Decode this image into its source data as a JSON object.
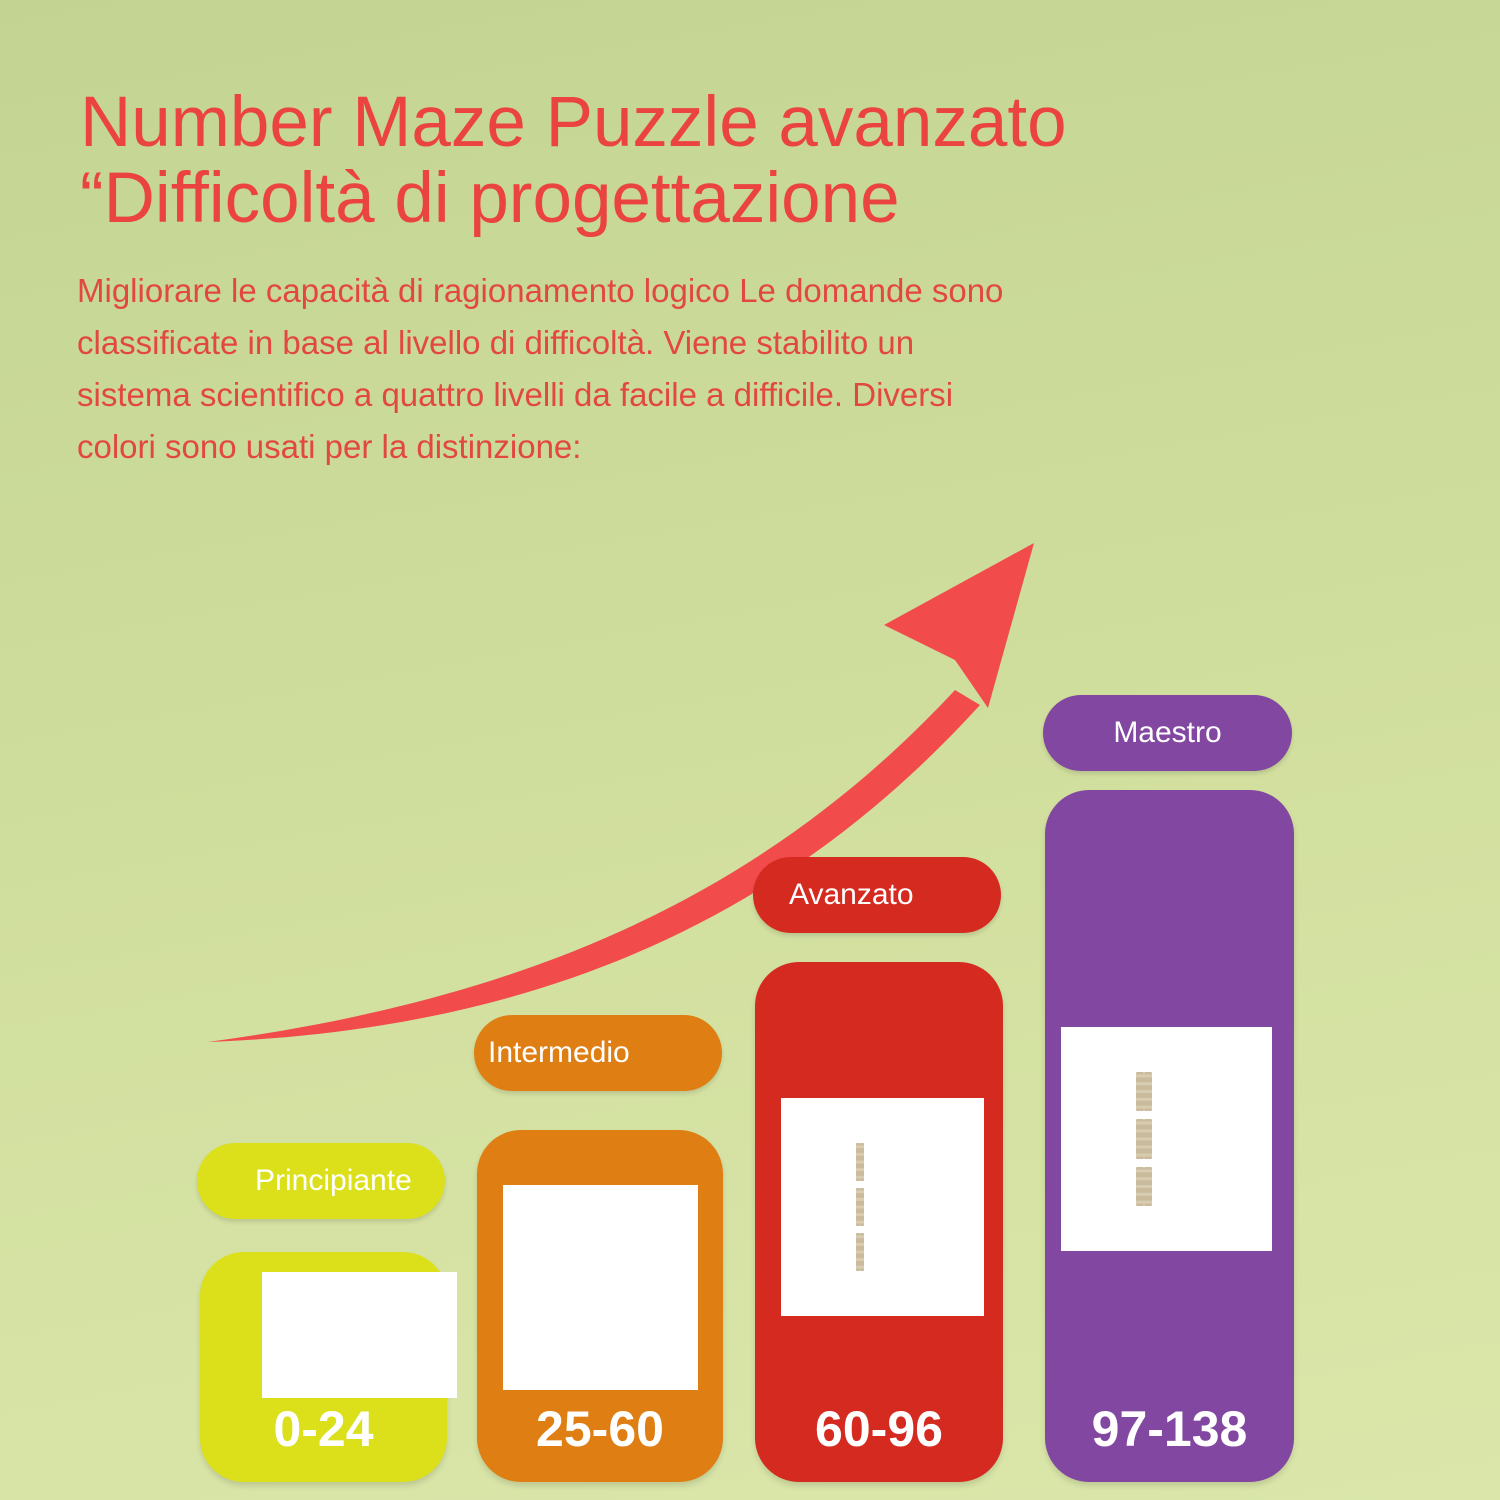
{
  "title_lines": [
    "Number Maze Puzzle avanzato",
    "“Difficoltà di progettazione"
  ],
  "description": "Migliorare le capacità di ragionamento logico Le domande sono classificate in base al livello di difficoltà. Viene stabilito un sistema scientifico a quattro livelli da facile a difficile. Diversi colori sono usati per la distinzione:",
  "arrow_color": "#f24b4b",
  "levels": [
    {
      "label": "Principiante",
      "range": "0-24",
      "color": "#dbe01b"
    },
    {
      "label": "Intermedio",
      "range": "25-60",
      "color": "#df7e12"
    },
    {
      "label": "Avanzato",
      "range": "60-96",
      "color": "#d52a1f"
    },
    {
      "label": "Maestro",
      "range": "97-138",
      "color": "#8247a0"
    }
  ]
}
